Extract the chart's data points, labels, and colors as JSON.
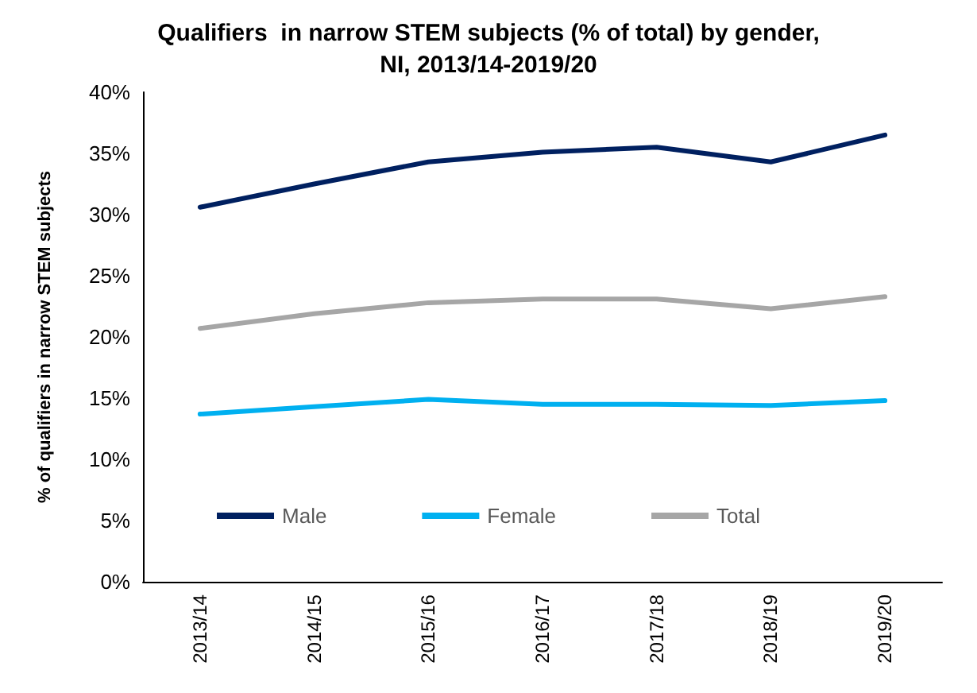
{
  "chart_data": {
    "type": "line",
    "title": "Qualifiers  in narrow STEM subjects (% of total) by gender,\nNI, 2013/14-2019/20",
    "ylabel": "% of qualifiers in narrow STEM subjects",
    "categories": [
      "2013/14",
      "2014/15",
      "2015/16",
      "2016/17",
      "2017/18",
      "2018/19",
      "2019/20"
    ],
    "series": [
      {
        "name": "Male",
        "color": "#002060",
        "values": [
          30.6,
          32.5,
          34.3,
          35.1,
          35.5,
          34.3,
          36.5
        ]
      },
      {
        "name": "Female",
        "color": "#00b0f0",
        "values": [
          13.7,
          14.3,
          14.9,
          14.5,
          14.5,
          14.4,
          14.8
        ]
      },
      {
        "name": "Total",
        "color": "#a6a6a6",
        "values": [
          20.7,
          21.9,
          22.8,
          23.1,
          23.1,
          22.3,
          23.3
        ]
      }
    ],
    "ylim": [
      0,
      40
    ],
    "yticks": [
      {
        "value": 0,
        "label": "0%"
      },
      {
        "value": 5,
        "label": "5%"
      },
      {
        "value": 10,
        "label": "10%"
      },
      {
        "value": 15,
        "label": "15%"
      },
      {
        "value": 20,
        "label": "20%"
      },
      {
        "value": 25,
        "label": "25%"
      },
      {
        "value": 30,
        "label": "30%"
      },
      {
        "value": 35,
        "label": "35%"
      },
      {
        "value": 40,
        "label": "40%"
      }
    ],
    "grid": false,
    "legend": "bottom",
    "marker": "none",
    "line_style": "solid"
  }
}
